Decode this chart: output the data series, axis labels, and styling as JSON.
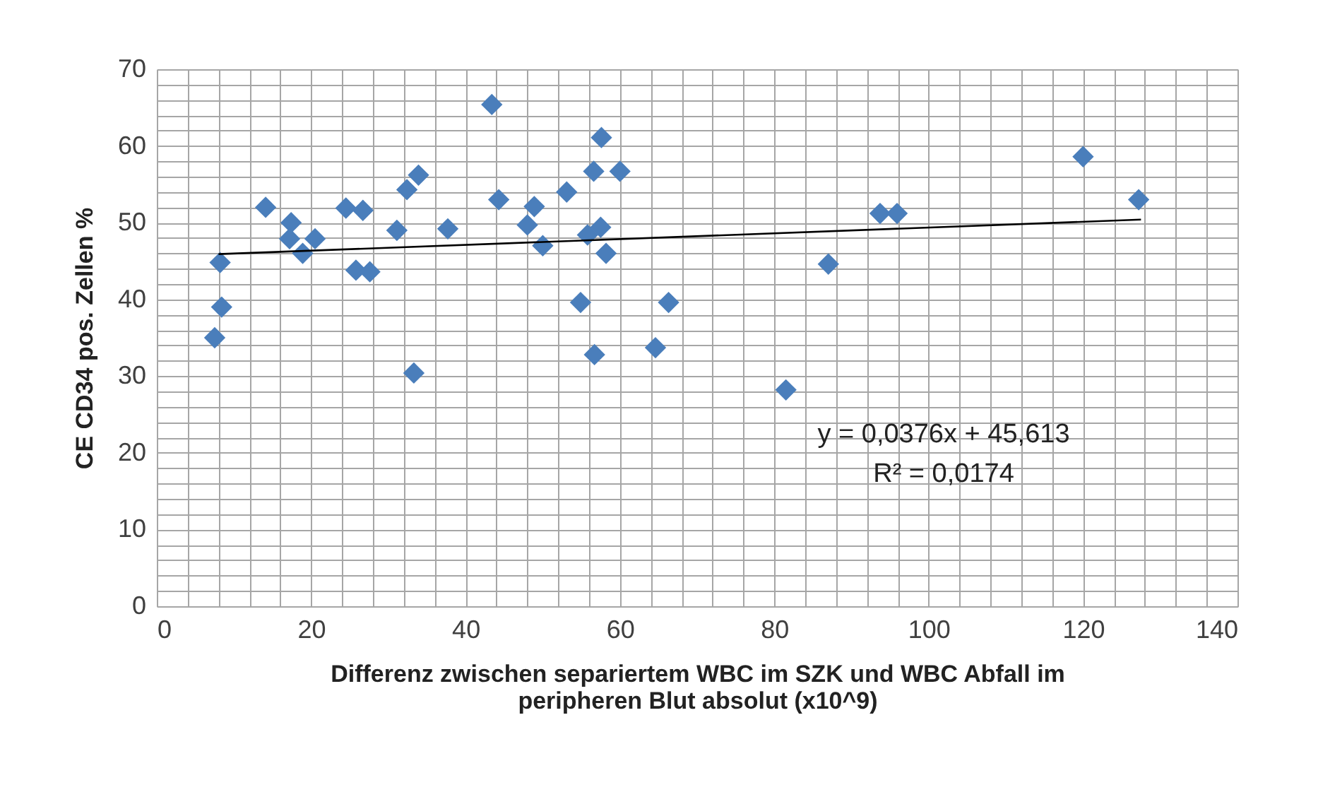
{
  "chart_data": {
    "type": "scatter",
    "xlabel": "Differenz zwischen separiertem WBC im SZK und WBC Abfall im peripheren Blut absolut (x10^9)",
    "ylabel": "CE CD34 pos. Zellen %",
    "xlim": [
      0,
      140
    ],
    "ylim": [
      0,
      70
    ],
    "xticks": [
      0,
      {
        "value": 4,
        "label": null
      },
      {
        "value": 8,
        "label": null
      },
      {
        "value": 12,
        "label": null
      },
      {
        "value": 16,
        "label": null
      },
      20,
      {
        "value": 24,
        "label": null
      },
      {
        "value": 28,
        "label": null
      },
      {
        "value": 32,
        "label": null
      },
      {
        "value": 36,
        "label": null
      },
      40,
      {
        "value": 44,
        "label": null
      },
      {
        "value": 48,
        "label": null
      },
      {
        "value": 52,
        "label": null
      },
      {
        "value": 56,
        "label": null
      },
      60,
      {
        "value": 64,
        "label": null
      },
      {
        "value": 68,
        "label": null
      },
      {
        "value": 72,
        "label": null
      },
      {
        "value": 76,
        "label": null
      },
      80,
      {
        "value": 84,
        "label": null
      },
      {
        "value": 88,
        "label": null
      },
      {
        "value": 92,
        "label": null
      },
      {
        "value": 96,
        "label": null
      },
      100,
      {
        "value": 104,
        "label": null
      },
      {
        "value": 108,
        "label": null
      },
      {
        "value": 112,
        "label": null
      },
      {
        "value": 116,
        "label": null
      },
      120,
      {
        "value": 124,
        "label": null
      },
      {
        "value": 128,
        "label": null
      },
      {
        "value": 132,
        "label": null
      },
      {
        "value": 136,
        "label": null
      },
      140
    ],
    "yticks": [
      0,
      {
        "value": 2,
        "label": null
      },
      {
        "value": 4,
        "label": null
      },
      {
        "value": 6,
        "label": null
      },
      {
        "value": 8,
        "label": null
      },
      10,
      {
        "value": 12,
        "label": null
      },
      {
        "value": 14,
        "label": null
      },
      {
        "value": 16,
        "label": null
      },
      {
        "value": 18,
        "label": null
      },
      20,
      {
        "value": 22,
        "label": null
      },
      {
        "value": 24,
        "label": null
      },
      {
        "value": 26,
        "label": null
      },
      {
        "value": 28,
        "label": null
      },
      30,
      {
        "value": 32,
        "label": null
      },
      {
        "value": 34,
        "label": null
      },
      {
        "value": 36,
        "label": null
      },
      {
        "value": 38,
        "label": null
      },
      40,
      {
        "value": 42,
        "label": null
      },
      {
        "value": 44,
        "label": null
      },
      {
        "value": 46,
        "label": null
      },
      {
        "value": 48,
        "label": null
      },
      50,
      {
        "value": 52,
        "label": null
      },
      {
        "value": 54,
        "label": null
      },
      {
        "value": 56,
        "label": null
      },
      {
        "value": 58,
        "label": null
      },
      60,
      {
        "value": 62,
        "label": null
      },
      {
        "value": 64,
        "label": null
      },
      {
        "value": 66,
        "label": null
      },
      {
        "value": 68,
        "label": null
      },
      70
    ],
    "grid": true,
    "series": [
      {
        "marker": "diamond",
        "color": "#4a7ebb",
        "x": [
          8.2,
          8.4,
          7.5,
          14.1,
          17.4,
          17.2,
          18.9,
          20.5,
          24.5,
          26.7,
          25.8,
          27.6,
          31.1,
          32.4,
          33.9,
          33.3,
          37.7,
          43.4,
          44.3,
          48.9,
          48.0,
          50.0,
          53.1,
          57.6,
          56.6,
          60.0,
          55.8,
          57.5,
          58.2,
          54.9,
          56.7,
          66.3,
          64.6,
          81.5,
          87.0,
          93.7,
          95.9,
          120.0,
          127.2
        ],
        "values": [
          44.8,
          39.0,
          35.0,
          52.0,
          50.0,
          47.9,
          46.0,
          47.9,
          51.9,
          51.6,
          43.8,
          43.6,
          49.0,
          54.3,
          56.2,
          30.4,
          49.2,
          65.4,
          53.0,
          52.1,
          49.7,
          47.0,
          54.0,
          61.1,
          56.7,
          56.7,
          48.4,
          49.4,
          46.0,
          39.6,
          32.8,
          39.6,
          33.7,
          28.2,
          44.6,
          51.2,
          51.2,
          58.6,
          53.0
        ]
      },
      {
        "type": "line",
        "color": "#000000",
        "x": [
          8.0,
          127.5
        ],
        "values": [
          45.9,
          50.4
        ]
      }
    ],
    "annotations": [
      "y = 0,0376x + 45,613",
      "R² = 0,0174"
    ]
  }
}
